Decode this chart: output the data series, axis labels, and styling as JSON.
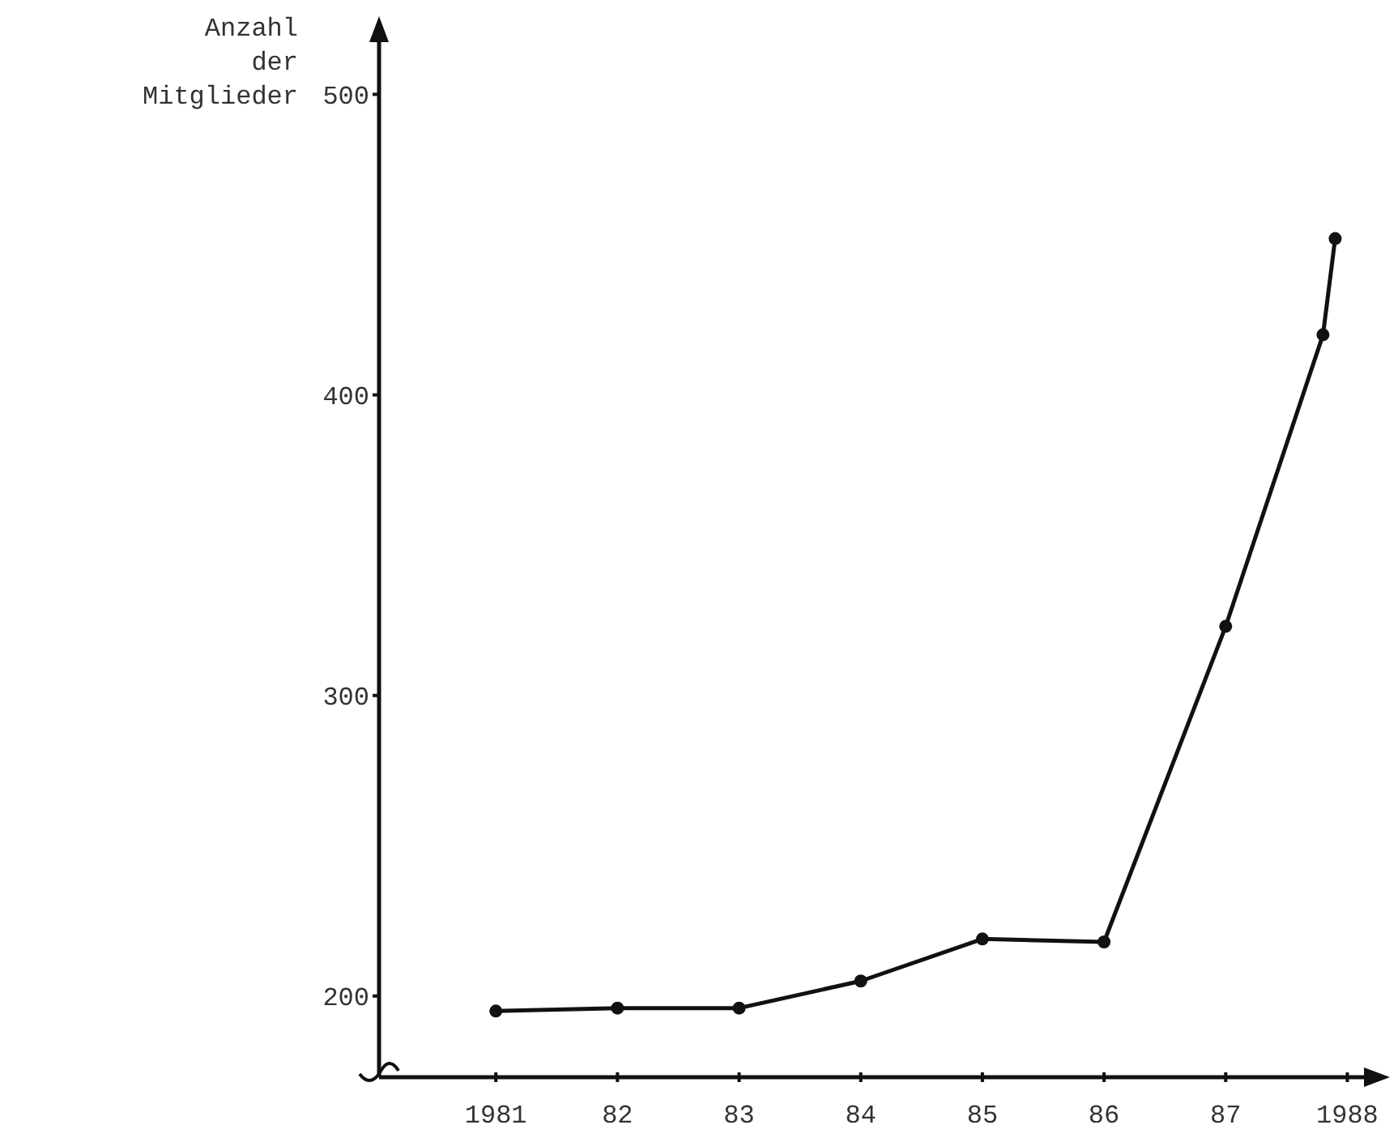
{
  "chart_data": {
    "type": "line",
    "ylabel": "Anzahl der Mitglieder",
    "x": [
      1981,
      1982,
      1983,
      1984,
      1985,
      1986,
      1987,
      1987.8,
      1987.9
    ],
    "values": [
      195,
      196,
      196,
      205,
      219,
      218,
      323,
      420,
      452
    ],
    "color": "#111111",
    "marker": "circle",
    "line_style": "solid",
    "grid": false,
    "xlim": [
      1980.04,
      1988.35
    ],
    "xticks": [
      1981,
      {
        "value": 1982,
        "label": "82"
      },
      {
        "value": 1983,
        "label": "83"
      },
      {
        "value": 1984,
        "label": "84"
      },
      {
        "value": 1985,
        "label": "85"
      },
      {
        "value": 1986,
        "label": "86"
      },
      {
        "value": 1987,
        "label": "87"
      },
      1988
    ],
    "ylim": [
      173,
      526
    ],
    "yticks": [
      200,
      300,
      400,
      500
    ]
  }
}
